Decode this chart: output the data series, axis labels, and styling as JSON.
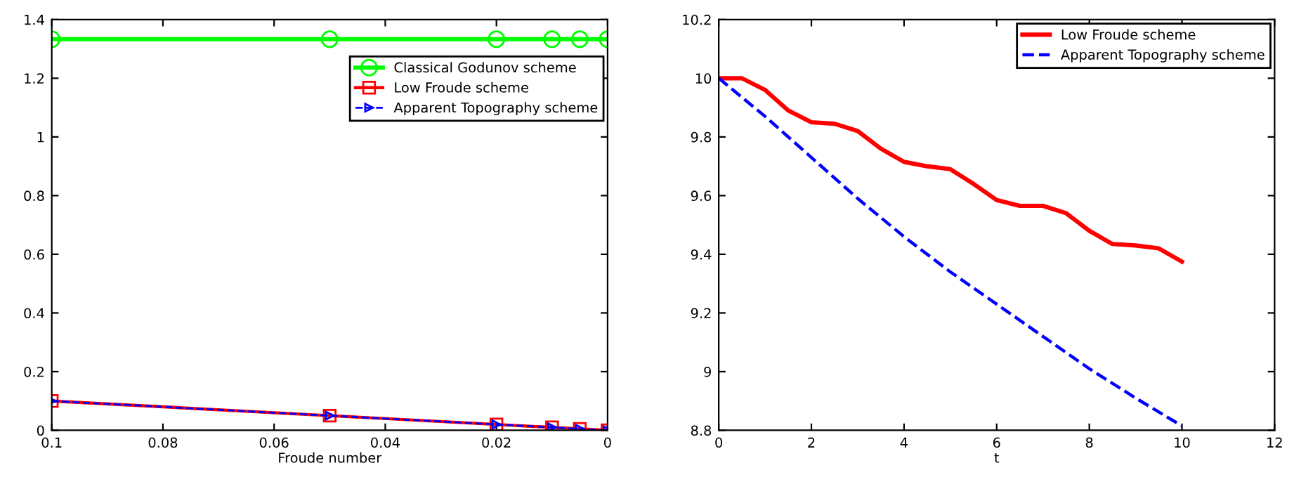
{
  "chart_data": [
    {
      "type": "line",
      "xlabel": "Froude number",
      "xlim": [
        0.1,
        0
      ],
      "xticks": [
        0.1,
        0.08,
        0.06,
        0.04,
        0.02,
        0
      ],
      "ylim": [
        0,
        1.4
      ],
      "yticks": [
        0,
        0.2,
        0.4,
        0.6,
        0.8,
        1,
        1.2,
        1.4
      ],
      "grid": false,
      "legend": "top right",
      "x": [
        0.1,
        0.05,
        0.02,
        0.01,
        0.005,
        0
      ],
      "series": [
        {
          "name": "Classical Godunov scheme",
          "color": "#00ff00",
          "marker": "circle",
          "line_style": "solid",
          "values": [
            1.333,
            1.333,
            1.333,
            1.333,
            1.333,
            1.333
          ]
        },
        {
          "name": "Low Froude scheme",
          "color": "#ff0000",
          "marker": "square",
          "line_style": "solid",
          "values": [
            0.1,
            0.05,
            0.02,
            0.01,
            0.005,
            0
          ]
        },
        {
          "name": "Apparent Topography scheme",
          "color": "#0000ff",
          "marker": "triangle",
          "line_style": "dashed",
          "values": [
            0.1,
            0.05,
            0.02,
            0.01,
            0.005,
            0
          ]
        }
      ]
    },
    {
      "type": "line",
      "xlabel": "t",
      "xlim": [
        0,
        12
      ],
      "xticks": [
        0,
        2,
        4,
        6,
        8,
        10,
        12
      ],
      "ylim": [
        8.8,
        10.2
      ],
      "yticks": [
        8.8,
        9,
        9.2,
        9.4,
        9.6,
        9.8,
        10,
        10.2
      ],
      "grid": false,
      "legend": "top right",
      "marker": "none",
      "series": [
        {
          "name": "Low Froude scheme",
          "color": "#ff0000",
          "line_style": "solid",
          "x": [
            0,
            0.5,
            1,
            1.5,
            2,
            2.5,
            3,
            3.5,
            4,
            4.5,
            5,
            5.5,
            6,
            6.5,
            7,
            7.5,
            8,
            8.5,
            9,
            9.5,
            10
          ],
          "values": [
            10.0,
            10.0,
            9.96,
            9.89,
            9.85,
            9.845,
            9.82,
            9.76,
            9.715,
            9.7,
            9.69,
            9.64,
            9.585,
            9.565,
            9.565,
            9.54,
            9.48,
            9.435,
            9.43,
            9.42,
            9.375
          ]
        },
        {
          "name": "Apparent Topography scheme",
          "color": "#0000ff",
          "line_style": "dashed",
          "x": [
            0,
            1,
            2,
            3,
            4,
            5,
            6,
            7,
            8,
            9,
            10
          ],
          "values": [
            10.0,
            9.87,
            9.73,
            9.59,
            9.46,
            9.34,
            9.23,
            9.12,
            9.01,
            8.91,
            8.815
          ]
        }
      ]
    }
  ]
}
